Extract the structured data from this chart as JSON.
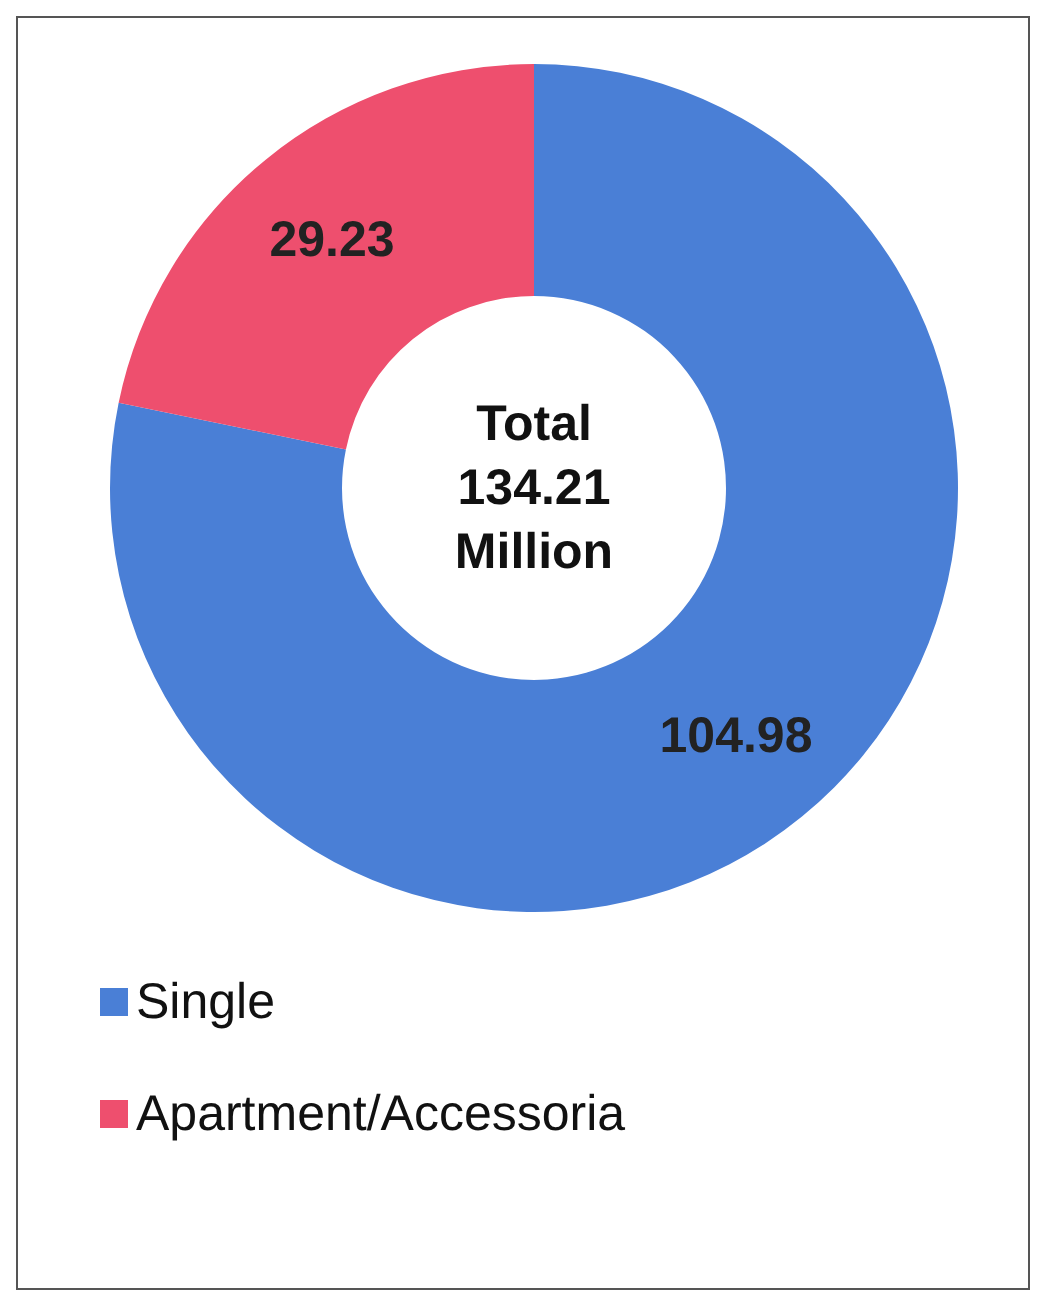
{
  "chart_data": {
    "type": "donut",
    "categories": [
      "Single",
      "Apartment/Accessoria"
    ],
    "values": [
      104.98,
      29.23
    ],
    "colors": [
      "#4a7fd6",
      "#ee4f6e"
    ],
    "data_labels": true,
    "legend": "bottom left",
    "annotations": [
      "Total 134.21 Million"
    ]
  }
}
